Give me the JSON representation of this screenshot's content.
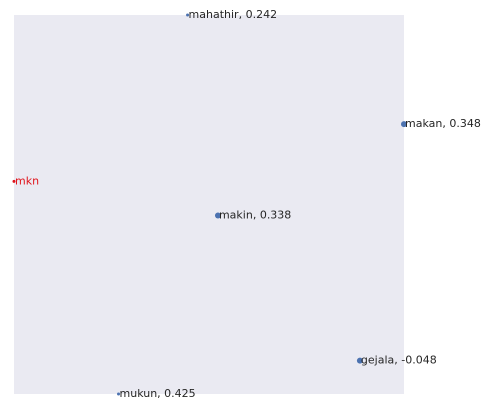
{
  "chart_data": {
    "type": "scatter",
    "title": "",
    "xlabel": "",
    "ylabel": "",
    "grid": false,
    "xlim": [
      0,
      1
    ],
    "ylim": [
      0,
      1
    ],
    "point_color": "#4c72b0",
    "highlight_color": "#e0141b",
    "background_color": "#eaeaf2",
    "points": [
      {
        "label": "mahathir, 0.242",
        "x": 0.445,
        "y": 1.0,
        "size": 1.5,
        "highlight": false
      },
      {
        "label": "makan, 0.348",
        "x": 1.0,
        "y": 0.712,
        "size": 3,
        "highlight": false
      },
      {
        "label": "mkn",
        "x": 0.0,
        "y": 0.561,
        "size": 1.5,
        "highlight": true
      },
      {
        "label": "makin, 0.338",
        "x": 0.523,
        "y": 0.471,
        "size": 3,
        "highlight": false
      },
      {
        "label": "gejala, -0.048",
        "x": 0.887,
        "y": 0.088,
        "size": 3,
        "highlight": false
      },
      {
        "label": "mukun, 0.425",
        "x": 0.268,
        "y": 0.0,
        "size": 1.5,
        "highlight": false
      }
    ]
  }
}
